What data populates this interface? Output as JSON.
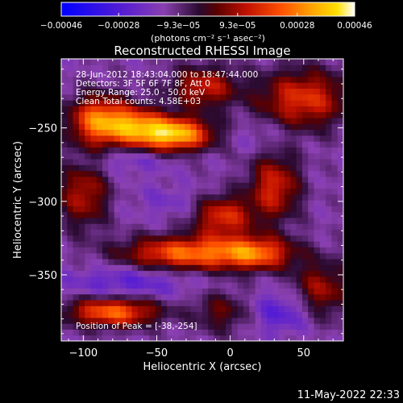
{
  "chart_data": {
    "type": "heatmap",
    "title": "Reconstructed RHESSI Image",
    "xlabel": "Heliocentric X (arcsec)",
    "ylabel": "Heliocentric Y (arcsec)",
    "xlim": [
      -115,
      77
    ],
    "ylim": [
      -395,
      -203
    ],
    "x_ticks": [
      -100,
      -50,
      0,
      50
    ],
    "x_tick_labels": [
      "−100",
      "−50",
      "0",
      "50"
    ],
    "y_ticks": [
      -250,
      -300,
      -350
    ],
    "y_tick_labels": [
      "−250",
      "−300",
      "−350"
    ],
    "colorbar": {
      "range": [
        -0.00046,
        0.00046
      ],
      "ticks": [
        -0.00046,
        -0.00028,
        -9.3e-05,
        9.3e-05,
        0.00028,
        0.00046
      ],
      "tick_labels": [
        "−0.00046",
        "−0.00028",
        "−9.3e−05",
        "9.3e−05",
        "0.00028",
        "0.00046"
      ],
      "unit_label": "(photons cm⁻² s⁻¹ asec⁻²)",
      "colormap": [
        "#0000ff",
        "#5a1fd0",
        "#8a40b0",
        "#2a0a30",
        "#5a0000",
        "#c01000",
        "#ff5000",
        "#ffa000",
        "#ffe000",
        "#ffffff"
      ]
    },
    "annotations": [
      "28-Jun-2012 18:43:04.000 to 18:47:44.000",
      "Detectors: 3F 5F 6F 7F 8F, Att 0",
      "Energy Range: 25.0 - 50.0 keV",
      "Clean    Total counts: 4.58E+03"
    ],
    "peak_label": "Position of Peak = [-38,-254]",
    "peak_position": [
      -38,
      -254
    ],
    "sources": [
      {
        "x": -38,
        "y": -254,
        "value": 0.00046,
        "sx": 18,
        "sy": 8
      },
      {
        "x": -90,
        "y": -245,
        "value": 0.00035,
        "sx": 14,
        "sy": 12
      },
      {
        "x": -65,
        "y": -248,
        "value": 0.00028,
        "sx": 14,
        "sy": 9
      },
      {
        "x": 50,
        "y": -230,
        "value": 0.00026,
        "sx": 22,
        "sy": 14
      },
      {
        "x": -18,
        "y": -222,
        "value": 0.00022,
        "sx": 16,
        "sy": 10
      },
      {
        "x": 30,
        "y": -290,
        "value": 0.00024,
        "sx": 12,
        "sy": 16
      },
      {
        "x": -5,
        "y": -310,
        "value": 0.00026,
        "sx": 14,
        "sy": 10
      },
      {
        "x": -30,
        "y": -335,
        "value": 0.00034,
        "sx": 30,
        "sy": 8
      },
      {
        "x": 18,
        "y": -335,
        "value": 0.00028,
        "sx": 18,
        "sy": 8
      },
      {
        "x": -80,
        "y": -375,
        "value": 0.00034,
        "sx": 22,
        "sy": 7
      },
      {
        "x": -100,
        "y": -295,
        "value": 0.0002,
        "sx": 12,
        "sy": 16
      },
      {
        "x": 62,
        "y": -360,
        "value": 0.00018,
        "sx": 14,
        "sy": 14
      },
      {
        "x": -5,
        "y": -375,
        "value": 0.00012,
        "sx": 14,
        "sy": 10
      },
      {
        "x": -70,
        "y": -272,
        "value": -0.00012,
        "sx": 22,
        "sy": 6
      },
      {
        "x": -70,
        "y": -355,
        "value": -0.00016,
        "sx": 30,
        "sy": 8
      },
      {
        "x": 35,
        "y": -375,
        "value": -0.00018,
        "sx": 16,
        "sy": 10
      },
      {
        "x": 20,
        "y": -255,
        "value": -0.0001,
        "sx": 14,
        "sy": 8
      },
      {
        "x": -40,
        "y": -300,
        "value": -0.0001,
        "sx": 18,
        "sy": 8
      }
    ]
  },
  "footer": {
    "date": "11-May-2022 22:33"
  }
}
